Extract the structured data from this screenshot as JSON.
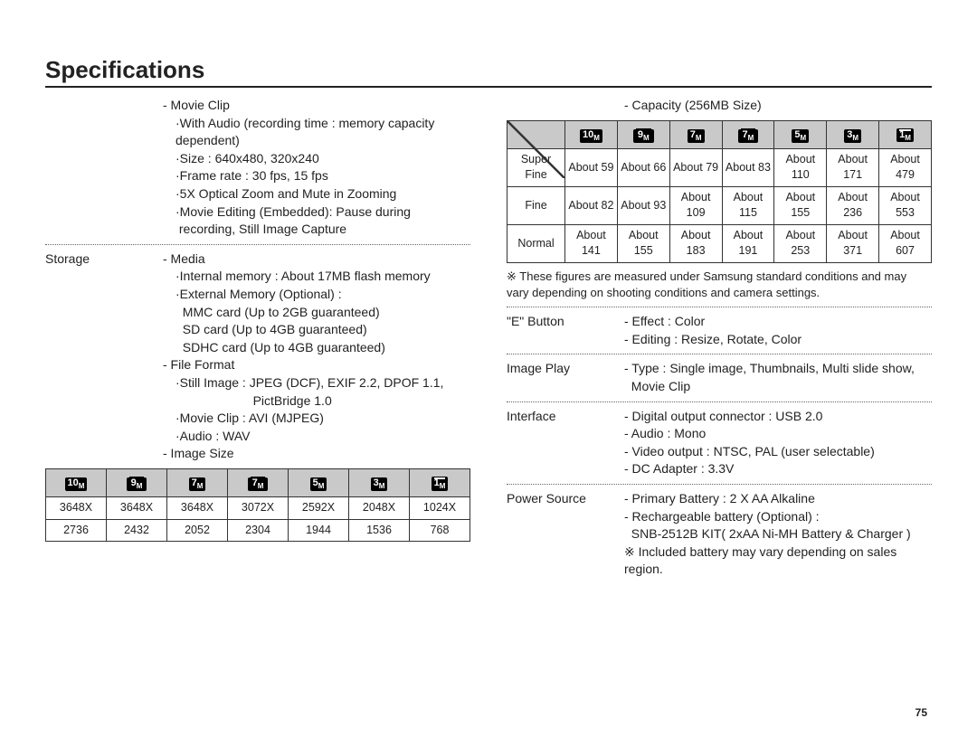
{
  "title": "Specifications",
  "left": {
    "movie_clip": {
      "heading": "- Movie Clip",
      "lines": [
        "·With Audio (recording time : memory capacity dependent)",
        "·Size : 640x480, 320x240",
        "·Frame rate : 30 fps, 15 fps",
        "·5X Optical Zoom and Mute in Zooming",
        "·Movie Editing (Embedded): Pause during",
        " recording, Still Image Capture"
      ]
    },
    "storage": {
      "label": "Storage",
      "media_heading": "- Media",
      "media_lines": [
        "·Internal memory : About 17MB flash memory",
        "·External Memory (Optional) :",
        "  MMC card (Up to 2GB guaranteed)",
        "  SD card (Up to 4GB guaranteed)",
        "  SDHC card (Up to 4GB guaranteed)"
      ],
      "file_heading": "- File Format",
      "file_lines": [
        "·Still Image : JPEG (DCF), EXIF 2.2, DPOF 1.1,",
        "                      PictBridge 1.0",
        "·Movie Clip : AVI (MJPEG)",
        "·Audio : WAV"
      ],
      "size_heading": "- Image Size"
    },
    "size_table": {
      "icons": [
        "10",
        "9",
        "7",
        "7",
        "5",
        "3",
        "1"
      ],
      "wide_icons": [
        false,
        true,
        false,
        true,
        false,
        false,
        false
      ],
      "one_icon": [
        false,
        false,
        false,
        false,
        false,
        false,
        true
      ],
      "row1": [
        "3648X",
        "3648X",
        "3648X",
        "3072X",
        "2592X",
        "2048X",
        "1024X"
      ],
      "row2": [
        "2736",
        "2432",
        "2052",
        "2304",
        "1944",
        "1536",
        "768"
      ]
    }
  },
  "right": {
    "capacity_heading": "- Capacity (256MB Size)",
    "cap_table": {
      "icons": [
        "10",
        "9",
        "7",
        "7",
        "5",
        "3",
        "1"
      ],
      "wide_icons": [
        false,
        true,
        false,
        true,
        false,
        false,
        false
      ],
      "one_icon": [
        false,
        false,
        false,
        false,
        false,
        false,
        true
      ],
      "rows": [
        {
          "h": "Super Fine",
          "v": [
            "About 59",
            "About 66",
            "About 79",
            "About 83",
            "About 110",
            "About 171",
            "About 479"
          ]
        },
        {
          "h": "Fine",
          "v": [
            "About 82",
            "About 93",
            "About 109",
            "About 115",
            "About 155",
            "About 236",
            "About 553"
          ]
        },
        {
          "h": "Normal",
          "v": [
            "About 141",
            "About 155",
            "About 183",
            "About 191",
            "About 253",
            "About 371",
            "About 607"
          ]
        }
      ]
    },
    "cap_note": "※ These figures are measured under Samsung standard conditions and may vary depending on shooting conditions and camera settings.",
    "e_button": {
      "label": "\"E\" Button",
      "lines": [
        "- Effect : Color",
        "- Editing : Resize, Rotate, Color"
      ]
    },
    "image_play": {
      "label": "Image Play",
      "lines": [
        "- Type : Single image, Thumbnails, Multi slide show,",
        "  Movie Clip"
      ]
    },
    "interface": {
      "label": "Interface",
      "lines": [
        "- Digital output connector : USB 2.0",
        "- Audio : Mono",
        "- Video output : NTSC, PAL (user selectable)",
        "- DC Adapter : 3.3V"
      ]
    },
    "power": {
      "label": "Power Source",
      "lines": [
        "- Primary Battery : 2 X AA Alkaline",
        "- Rechargeable battery (Optional) :",
        "  SNB-2512B KIT( 2xAA Ni-MH Battery & Charger )"
      ],
      "note": "※ Included battery may vary depending on sales region."
    }
  },
  "page_number": "75"
}
